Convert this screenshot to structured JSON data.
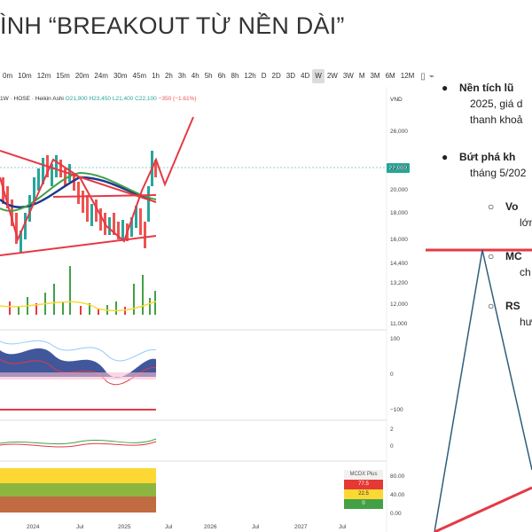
{
  "title": "ÌNH “BREAKOUT TỪ NỀN DÀI”",
  "toolbar": {
    "timeframes": [
      "0m",
      "10m",
      "12m",
      "15m",
      "20m",
      "24m",
      "30m",
      "45m",
      "1h",
      "2h",
      "3h",
      "4h",
      "5h",
      "6h",
      "8h",
      "12h",
      "D",
      "2D",
      "3D",
      "4D",
      "W",
      "2W",
      "3W",
      "M",
      "3M",
      "6M",
      "12M"
    ],
    "active": "W"
  },
  "legend": {
    "symbol": "1W · HOSE · Heikin Ashi",
    "o": "O21,900",
    "h": "H23,450",
    "l": "L21,400",
    "c": "C22,100",
    "change": "−350 (−1.61%)",
    "currency": "VND"
  },
  "price_axis": [
    "26,000",
    "22,000",
    "20,000",
    "18,000",
    "16,000",
    "14,400",
    "13,200",
    "12,000",
    "11,000"
  ],
  "last_price": "22,000",
  "osc_axis": [
    "100",
    "0",
    "−100"
  ],
  "macd_axis": [
    "2",
    "0"
  ],
  "mcdx_axis": [
    "80.00",
    "40.00",
    "0.00"
  ],
  "x_axis": [
    "2024",
    "Jul",
    "2025",
    "Jul",
    "2026",
    "Jul",
    "2027",
    "Jul"
  ],
  "mcdx_legend": {
    "title": "MCDX Plus",
    "v1": "77.5",
    "v2": "22.5",
    "v3": "0"
  },
  "bullets": [
    {
      "bold": "Nền tích lũ",
      "lines": [
        "2025, giá d",
        "thanh khoả"
      ]
    },
    {
      "bold": "Bứt phá kh",
      "lines": [
        "tháng 5/202"
      ]
    }
  ],
  "subs": [
    {
      "bold": "Vo",
      "line": "lớn"
    },
    {
      "bold": "MC",
      "line": "ch"
    },
    {
      "bold": "RS",
      "line": "hư"
    }
  ],
  "colors": {
    "up": "#26a69a",
    "down": "#ef5350",
    "accent": "#e53946",
    "ma_green": "#43a047",
    "ma_blue": "#1e3a8a"
  }
}
